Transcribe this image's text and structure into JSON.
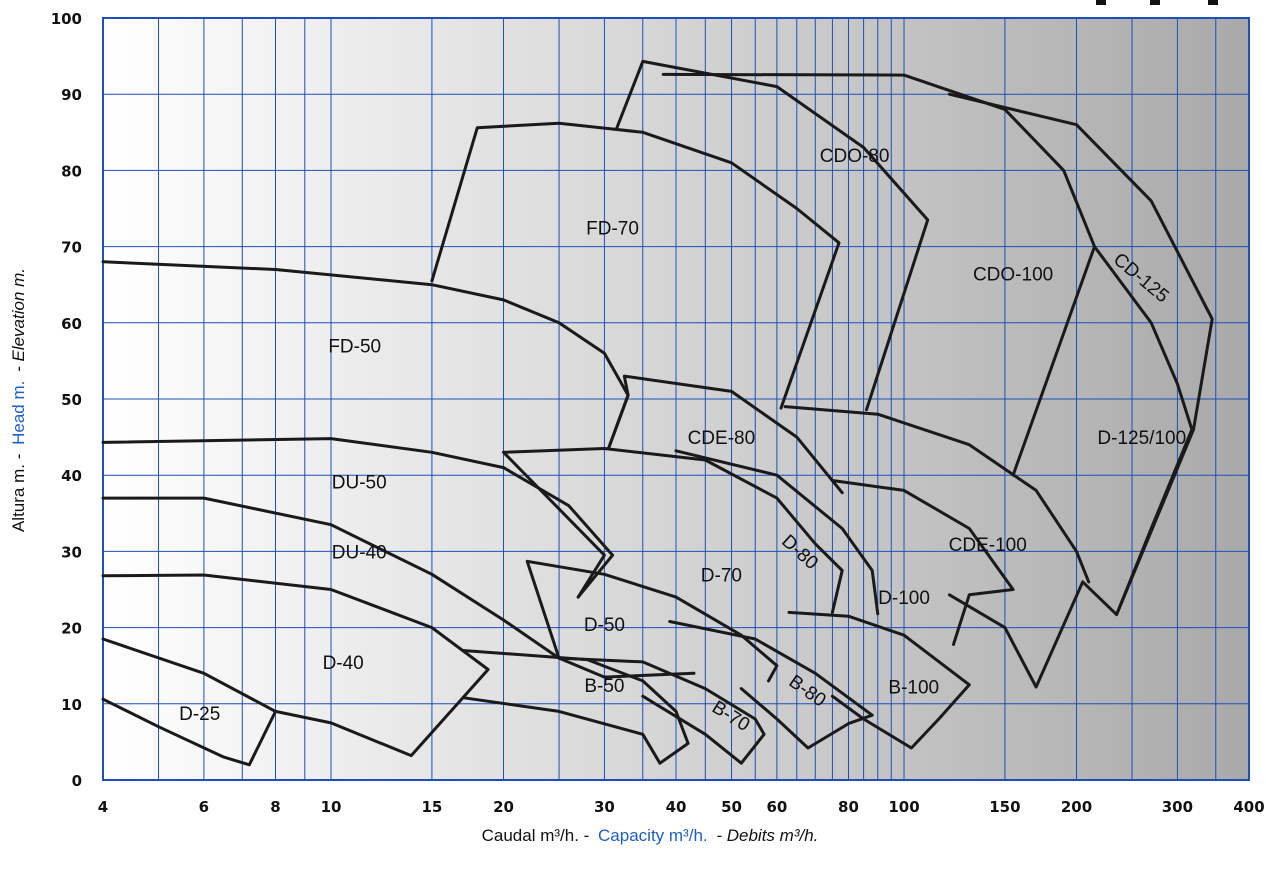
{
  "chart_data": {
    "type": "line",
    "x_scale": "log",
    "xlim": [
      4,
      400
    ],
    "ylim": [
      0,
      100
    ],
    "grid": true,
    "x_ticks": [
      "4",
      "6",
      "8",
      "10",
      "15",
      "20",
      "30",
      "40",
      "50",
      "60",
      "80",
      "100",
      "150",
      "200",
      "300",
      "400"
    ],
    "x_tick_values": [
      4,
      6,
      8,
      10,
      15,
      20,
      30,
      40,
      50,
      60,
      80,
      100,
      150,
      200,
      300,
      400
    ],
    "y_ticks": [
      "0",
      "10",
      "20",
      "30",
      "40",
      "50",
      "60",
      "70",
      "80",
      "90",
      "100"
    ],
    "y_tick_values": [
      0,
      10,
      20,
      30,
      40,
      50,
      60,
      70,
      80,
      90,
      100
    ],
    "xlabel": {
      "part1": "Caudal m³/h. -",
      "part2": "Capacity m³/h.",
      "part3": "- Debits m³/h."
    },
    "ylabel": {
      "part1": "Altura m. -",
      "part2": "Head m.",
      "part3": "- Elevation m."
    },
    "colors": {
      "accent": "#1f5fbf",
      "grid": "#1f4fb5",
      "curve": "#1a1a1a",
      "background_light": "#ffffff",
      "background_dark": "#a9a9a9"
    },
    "series": [
      {
        "name": "D-25",
        "label_at": [
          5.9,
          8.8
        ],
        "points": [
          [
            4,
            10.6
          ],
          [
            5,
            7
          ],
          [
            6.5,
            3
          ],
          [
            7.2,
            2
          ],
          [
            8,
            9
          ],
          [
            6,
            14
          ],
          [
            4,
            18.5
          ]
        ]
      },
      {
        "name": "D-40",
        "label_at": [
          10.5,
          15.5
        ],
        "points": [
          [
            8,
            9
          ],
          [
            10,
            7.5
          ],
          [
            13.8,
            3.2
          ],
          [
            18.8,
            14.5
          ],
          [
            15,
            20
          ],
          [
            10,
            25
          ],
          [
            6,
            26.9
          ],
          [
            4,
            26.8
          ]
        ]
      },
      {
        "name": "DU-40",
        "label_at": [
          11.2,
          30
        ],
        "points": [
          [
            4,
            37
          ],
          [
            6,
            37
          ],
          [
            10,
            33.5
          ],
          [
            15,
            27
          ],
          [
            20,
            21
          ],
          [
            25,
            16
          ],
          [
            30,
            13.5
          ],
          [
            43,
            14
          ]
        ]
      },
      {
        "name": "DU-50",
        "label_at": [
          11.2,
          39.2
        ],
        "points": [
          [
            4,
            44.3
          ],
          [
            10,
            44.8
          ],
          [
            15,
            43
          ],
          [
            20,
            41
          ],
          [
            26,
            36
          ],
          [
            31,
            29.5
          ],
          [
            27,
            24
          ]
        ]
      },
      {
        "name": "FD-50",
        "label_at": [
          11,
          57
        ],
        "points": [
          [
            4,
            68
          ],
          [
            8,
            67
          ],
          [
            15,
            65
          ],
          [
            20,
            63
          ],
          [
            25,
            60
          ],
          [
            30,
            56
          ],
          [
            33,
            50.5
          ],
          [
            30.5,
            43.5
          ]
        ]
      },
      {
        "name": "FD-70",
        "label_at": [
          31,
          72.5
        ],
        "points": [
          [
            15,
            65.5
          ],
          [
            18,
            85.6
          ],
          [
            25,
            86.2
          ],
          [
            35,
            85
          ],
          [
            50,
            81
          ],
          [
            65,
            75
          ],
          [
            77,
            70.5
          ],
          [
            61,
            48.8
          ]
        ]
      },
      {
        "name": "CDO-80",
        "label_at": [
          82,
          82
        ],
        "points": [
          [
            31.5,
            85.5
          ],
          [
            35,
            94.3
          ],
          [
            60,
            91
          ],
          [
            85,
            83
          ],
          [
            110,
            73.5
          ],
          [
            86,
            48.6
          ]
        ]
      },
      {
        "name": "CDO-100",
        "label_at": [
          155,
          66.5
        ],
        "points": [
          [
            38,
            92.6
          ],
          [
            100,
            92.5
          ],
          [
            150,
            88
          ],
          [
            190,
            80
          ],
          [
            215,
            70
          ],
          [
            155,
            40
          ]
        ]
      },
      {
        "name": "CD-125",
        "label_at": [
          260,
          66
        ],
        "points": [
          [
            120,
            90
          ],
          [
            200,
            86
          ],
          [
            270,
            76
          ],
          [
            345,
            60.5
          ],
          [
            320,
            46
          ],
          [
            235,
            21.7
          ]
        ]
      },
      {
        "name": "D-125/100",
        "label_at": [
          260,
          45
        ],
        "points": [
          [
            215,
            70
          ],
          [
            270,
            60
          ],
          [
            300,
            52
          ],
          [
            318,
            46
          ],
          [
            270,
            33
          ],
          [
            235,
            21.7
          ],
          [
            205,
            26
          ],
          [
            170,
            12.2
          ],
          [
            150,
            20
          ],
          [
            120,
            24.3
          ]
        ]
      },
      {
        "name": "CDE-80",
        "label_at": [
          48,
          45
        ],
        "points": [
          [
            30.5,
            43.5
          ],
          [
            33,
            50.5
          ],
          [
            32.5,
            53
          ],
          [
            50,
            51
          ],
          [
            65,
            45
          ],
          [
            78,
            37.7
          ]
        ]
      },
      {
        "name": "CDE-100",
        "label_at": [
          140,
          31
        ],
        "points": [
          [
            62,
            49
          ],
          [
            90,
            48
          ],
          [
            130,
            44
          ],
          [
            170,
            38
          ],
          [
            200,
            30
          ],
          [
            210,
            26
          ]
        ]
      },
      {
        "name": "D-70",
        "label_at": [
          48,
          27
        ],
        "points": [
          [
            27,
            24
          ],
          [
            30,
            29.5
          ],
          [
            20,
            43
          ],
          [
            30,
            43.5
          ],
          [
            45,
            42
          ],
          [
            60,
            37
          ],
          [
            70,
            31
          ],
          [
            78,
            27.5
          ],
          [
            75,
            22
          ]
        ]
      },
      {
        "name": "D-80",
        "label_at": [
          66,
          30
        ],
        "points": [
          [
            40,
            43.2
          ],
          [
            60,
            40
          ],
          [
            78,
            33
          ],
          [
            88,
            27.5
          ],
          [
            90,
            21.8
          ]
        ]
      },
      {
        "name": "D-100",
        "label_at": [
          100,
          24
        ],
        "points": [
          [
            75,
            39.3
          ],
          [
            100,
            38
          ],
          [
            130,
            33
          ],
          [
            155,
            25
          ],
          [
            130,
            24.3
          ],
          [
            122,
            17.8
          ]
        ]
      },
      {
        "name": "D-50",
        "label_at": [
          30,
          20.5
        ],
        "points": [
          [
            25,
            16
          ],
          [
            22,
            28.7
          ],
          [
            30,
            27
          ],
          [
            40,
            24
          ],
          [
            52,
            19
          ],
          [
            60,
            15
          ],
          [
            58,
            13
          ]
        ]
      },
      {
        "name": "B-50",
        "label_at": [
          30,
          12.5
        ],
        "points": [
          [
            17,
            10.8
          ],
          [
            25,
            9
          ],
          [
            35,
            6
          ],
          [
            37.5,
            2.2
          ],
          [
            42,
            4.8
          ],
          [
            40,
            9
          ],
          [
            35,
            13
          ],
          [
            28,
            15.8
          ],
          [
            17,
            17
          ]
        ]
      },
      {
        "name": "B-70",
        "label_at": [
          50,
          8.5
        ],
        "points": [
          [
            25,
            16
          ],
          [
            35,
            15.5
          ],
          [
            45,
            12
          ],
          [
            55,
            8
          ],
          [
            57,
            6
          ],
          [
            52,
            2.2
          ],
          [
            45,
            6
          ],
          [
            35,
            11
          ]
        ]
      },
      {
        "name": "B-80",
        "label_at": [
          68,
          11.8
        ],
        "points": [
          [
            39,
            20.8
          ],
          [
            55,
            18.5
          ],
          [
            70,
            14
          ],
          [
            88,
            8.5
          ],
          [
            80,
            7.4
          ],
          [
            68,
            4.2
          ],
          [
            60,
            8
          ],
          [
            52,
            12
          ]
        ]
      },
      {
        "name": "B-100",
        "label_at": [
          104,
          12.3
        ],
        "points": [
          [
            63,
            22
          ],
          [
            80,
            21.5
          ],
          [
            100,
            19
          ],
          [
            130,
            12.5
          ],
          [
            115,
            8
          ],
          [
            103,
            4.2
          ],
          [
            85,
            8
          ],
          [
            75,
            11
          ]
        ]
      }
    ]
  }
}
